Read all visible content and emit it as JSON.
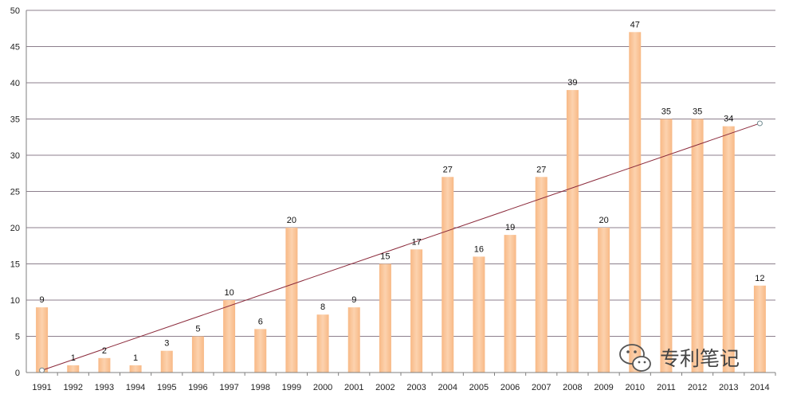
{
  "chart_data": {
    "type": "bar",
    "title": "",
    "xlabel": "",
    "ylabel": "",
    "ylim": [
      0,
      50
    ],
    "yticks": [
      "0",
      "5",
      "10",
      "15",
      "20",
      "25",
      "30",
      "35",
      "40",
      "45",
      "50"
    ],
    "grid": true,
    "categories": [
      "1991",
      "1992",
      "1993",
      "1994",
      "1995",
      "1996",
      "1997",
      "1998",
      "1999",
      "2000",
      "2001",
      "2002",
      "2003",
      "2004",
      "2005",
      "2006",
      "2007",
      "2008",
      "2009",
      "2010",
      "2011",
      "2012",
      "2013",
      "2014"
    ],
    "values": [
      9,
      1,
      2,
      1,
      3,
      5,
      10,
      6,
      20,
      8,
      9,
      15,
      17,
      27,
      16,
      19,
      27,
      39,
      20,
      47,
      35,
      35,
      34,
      12
    ],
    "trendline": {
      "type": "linear",
      "start": 0.3,
      "end": 34.4
    }
  },
  "colors": {
    "bar": "#fac090",
    "bar_highlight": "#fde3cc",
    "grid": "#8c7f8c",
    "axis": "#7f7f7f",
    "trend": "#8b2a3b"
  },
  "watermark": {
    "icon": "wechat-icon",
    "text": "专利笔记"
  }
}
